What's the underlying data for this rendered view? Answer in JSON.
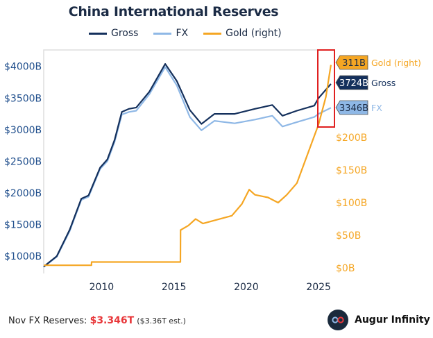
{
  "footer": {
    "label": "Nov FX Reserves:",
    "value": "$3.346T",
    "estimate": "($3.36T est.)",
    "brand": "Augur Infinity"
  },
  "chart_data": {
    "type": "line",
    "title": "China International Reserves",
    "legend_position": "top",
    "grid": false,
    "xlim": [
      2006,
      2026
    ],
    "x_ticks": [
      2010,
      2015,
      2020,
      2025
    ],
    "x_tick_labels": [
      "2010",
      "2015",
      "2020",
      "2025"
    ],
    "y_left": {
      "lim": [
        815,
        4260
      ],
      "ticks": [
        1000,
        1500,
        2000,
        2500,
        3000,
        3500,
        4000
      ],
      "tick_labels": [
        "$1000B",
        "$1500B",
        "$2000B",
        "$2500B",
        "$3000B",
        "$3500B",
        "$4000B"
      ],
      "color": "#1f4e8c"
    },
    "y_right": {
      "lim": [
        0,
        334
      ],
      "ticks": [
        0,
        50,
        100,
        150,
        200
      ],
      "tick_labels": [
        "$0B",
        "$50B",
        "$100B",
        "$150B",
        "$200B"
      ],
      "color": "#f5a623"
    },
    "series": [
      {
        "name": "Gross",
        "axis": "left",
        "color": "#14305c",
        "end_label": "3724B",
        "x": [
          2006.0,
          2006.9,
          2007.8,
          2008.6,
          2009.1,
          2009.9,
          2010.4,
          2010.9,
          2011.4,
          2011.9,
          2012.4,
          2013.3,
          2014.4,
          2015.2,
          2016.1,
          2016.9,
          2017.8,
          2019.2,
          2020.6,
          2021.8,
          2022.5,
          2023.5,
          2024.7,
          2025.0,
          2025.85
        ],
        "y": [
          835,
          1000,
          1420,
          1910,
          1960,
          2400,
          2530,
          2840,
          3280,
          3330,
          3350,
          3600,
          4040,
          3770,
          3310,
          3090,
          3250,
          3250,
          3330,
          3390,
          3220,
          3300,
          3380,
          3500,
          3724
        ]
      },
      {
        "name": "FX",
        "axis": "left",
        "color": "#8fb8e6",
        "end_label": "3346B",
        "x": [
          2006.0,
          2006.9,
          2007.8,
          2008.6,
          2009.1,
          2009.9,
          2010.4,
          2010.9,
          2011.4,
          2011.9,
          2012.4,
          2013.3,
          2014.4,
          2015.2,
          2016.1,
          2016.9,
          2017.8,
          2019.2,
          2020.6,
          2021.8,
          2022.5,
          2023.5,
          2024.7,
          2025.0,
          2025.85
        ],
        "y": [
          830,
          990,
          1400,
          1890,
          1940,
          2380,
          2500,
          2810,
          3240,
          3280,
          3300,
          3560,
          3990,
          3700,
          3200,
          2990,
          3140,
          3100,
          3160,
          3220,
          3050,
          3120,
          3200,
          3250,
          3346
        ]
      },
      {
        "name": "Gold (right)",
        "axis": "right",
        "color": "#f5a623",
        "end_label": "311B",
        "x": [
          2006.0,
          2009.3,
          2009.31,
          2015.45,
          2015.46,
          2016.0,
          2016.5,
          2017.0,
          2018.0,
          2019.0,
          2019.7,
          2020.2,
          2020.6,
          2021.5,
          2022.2,
          2022.8,
          2023.5,
          2024.0,
          2024.5,
          2025.0,
          2025.5,
          2025.85
        ],
        "y": [
          4,
          4,
          9,
          9,
          58,
          65,
          75,
          68,
          74,
          80,
          98,
          120,
          112,
          108,
          100,
          112,
          130,
          160,
          190,
          220,
          262,
          311
        ]
      }
    ]
  }
}
